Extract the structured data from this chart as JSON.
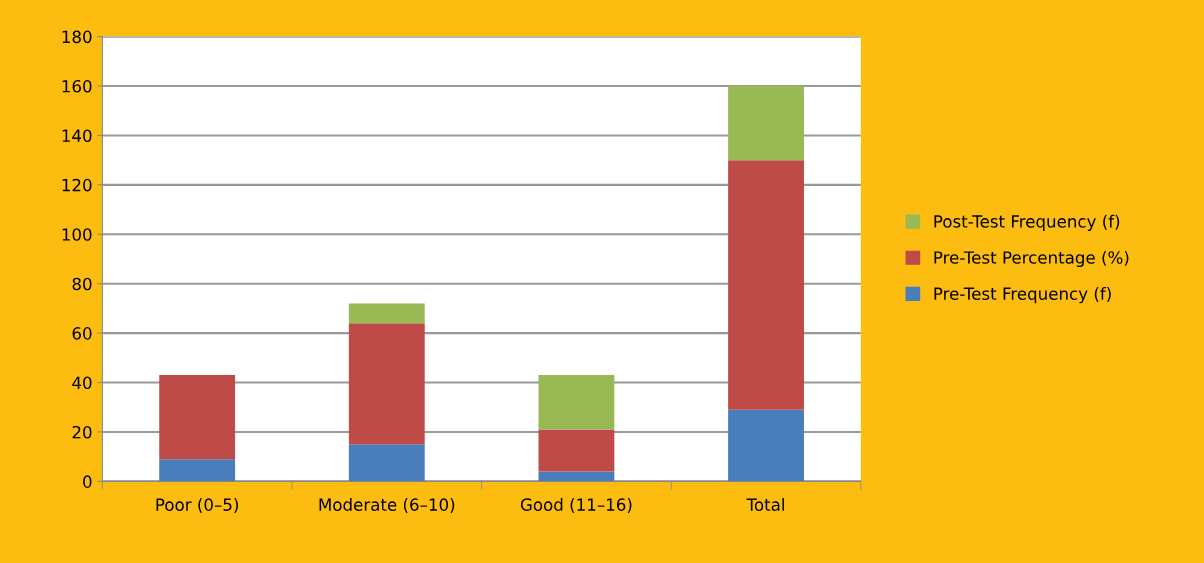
{
  "chart_data": {
    "type": "bar",
    "stacked": true,
    "categories": [
      "Poor (0–5)",
      "Moderate (6–10)",
      "Good (11–16)",
      "Total"
    ],
    "series": [
      {
        "name": "Pre-Test Frequency (f)",
        "color": "#4a7ebb",
        "values": [
          9,
          15,
          4,
          29
        ]
      },
      {
        "name": "Pre-Test Percentage (%)",
        "color": "#be4b48",
        "values": [
          34,
          49,
          17,
          101
        ]
      },
      {
        "name": "Post-Test Frequency (f)",
        "color": "#98b954",
        "values": [
          0,
          8,
          22,
          30
        ]
      }
    ],
    "ylim": [
      0,
      180
    ],
    "yticks": [
      0,
      20,
      40,
      60,
      80,
      100,
      120,
      140,
      160,
      180
    ],
    "grid": "y",
    "legend": "right"
  }
}
